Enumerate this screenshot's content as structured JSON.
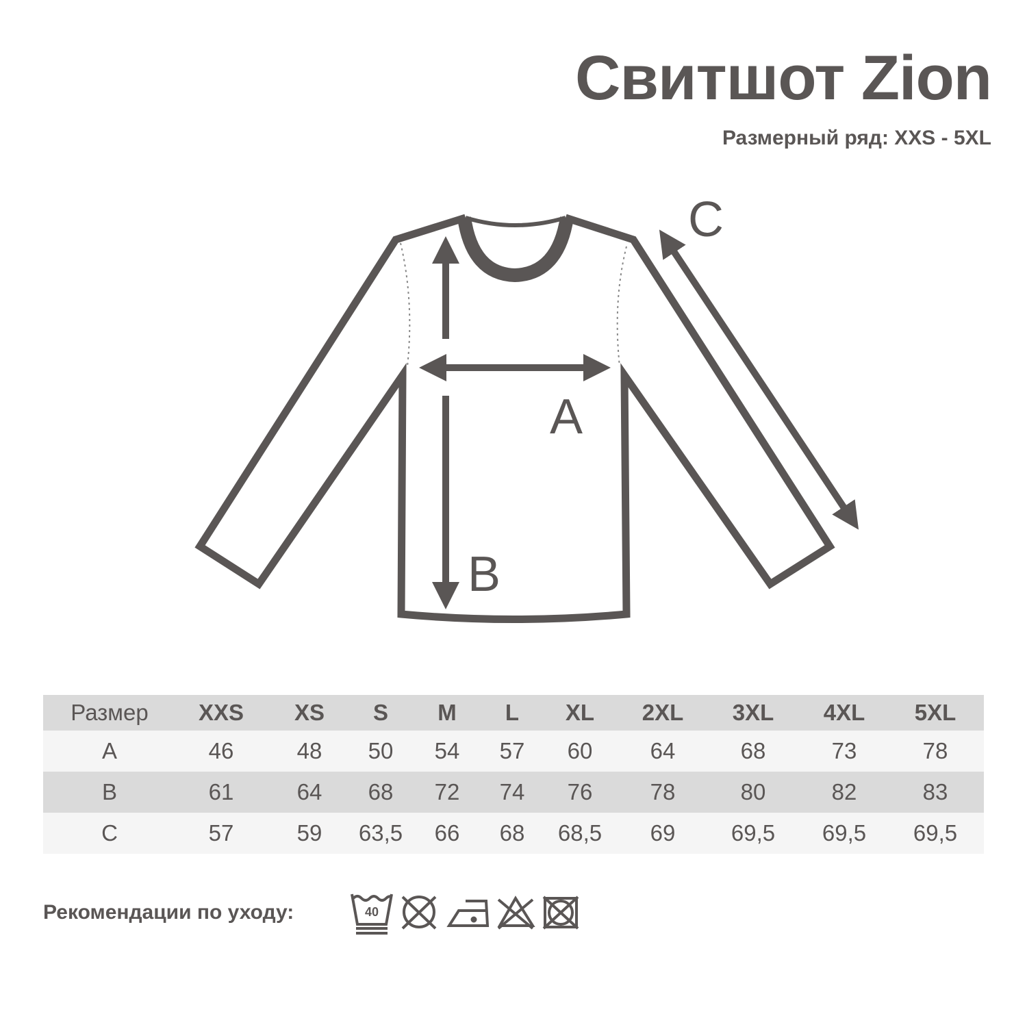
{
  "title": "Свитшот Zion",
  "subtitle": "Размерный ряд: XXS - 5XL",
  "diagram": {
    "labels": {
      "a": "A",
      "b": "B",
      "c": "C"
    }
  },
  "table": {
    "header": [
      "Размер",
      "XXS",
      "XS",
      "S",
      "M",
      "L",
      "XL",
      "2XL",
      "3XL",
      "4XL",
      "5XL"
    ],
    "rows": [
      [
        "A",
        "46",
        "48",
        "50",
        "54",
        "57",
        "60",
        "64",
        "68",
        "73",
        "78"
      ],
      [
        "B",
        "61",
        "64",
        "68",
        "72",
        "74",
        "76",
        "78",
        "80",
        "82",
        "83"
      ],
      [
        "C",
        "57",
        "59",
        "63,5",
        "66",
        "68",
        "68,5",
        "69",
        "69,5",
        "69,5",
        "69,5"
      ]
    ]
  },
  "care": {
    "label": "Рекомендации по уходу:",
    "wash_temp": "40",
    "icons": [
      "wash-40-gentle-icon",
      "no-tumble-dry-icon",
      "iron-low-icon",
      "no-bleach-icon",
      "no-dry-clean-icon"
    ]
  },
  "colors": {
    "text": "#5a5655",
    "row_dark": "#dadada",
    "row_light": "#f5f5f5"
  }
}
